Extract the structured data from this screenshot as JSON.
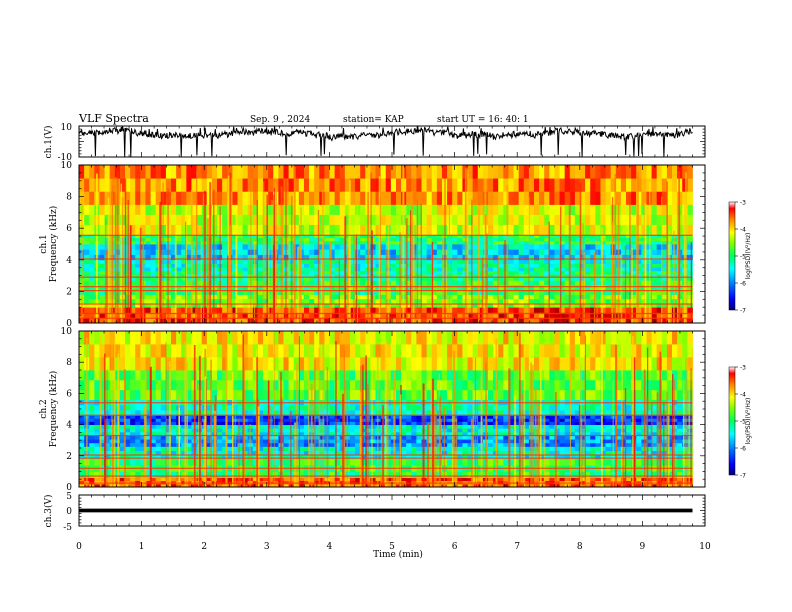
{
  "header": {
    "title": "VLF Spectra",
    "date": "Sep. 9 , 2024",
    "station": "station= KAP",
    "start": "start UT = 16: 40: 1"
  },
  "chart_data": [
    {
      "type": "line",
      "panel": "ch1",
      "ylabel": "ch.1(V)",
      "ylim": [
        -10,
        10
      ],
      "yticks": [
        "10",
        "-10"
      ],
      "xlim": [
        0,
        10
      ],
      "x_data_max": 9.8,
      "series": [
        {
          "level_approx": 5,
          "range": [
            -10,
            10
          ]
        }
      ]
    },
    {
      "type": "heatmap",
      "panel": "spec1",
      "ylabel": "ch.1",
      "ylabel2": "Frequency (kHz)",
      "ylim": [
        0,
        10
      ],
      "yticks": [
        "0",
        "2",
        "4",
        "6",
        "8",
        "10"
      ],
      "xlim": [
        0,
        10
      ],
      "x_data_max": 9.8,
      "colorbar": {
        "range": [
          -7,
          -3
        ],
        "ticks": [
          "-3",
          "-4",
          "-5",
          "-6",
          "-7"
        ],
        "label": "log(PSD)(V²/Hz)"
      },
      "bands": [
        {
          "f": [
            0,
            1.0
          ],
          "level": -3.4
        },
        {
          "f": [
            1.0,
            1.8
          ],
          "level": -4.6
        },
        {
          "f": [
            1.8,
            2.7
          ],
          "level": -4.9
        },
        {
          "f": [
            2.7,
            3.3
          ],
          "level": -5.1
        },
        {
          "f": [
            3.3,
            4.0
          ],
          "level": -5.3
        },
        {
          "f": [
            4.0,
            5.0
          ],
          "level": -5.6
        },
        {
          "f": [
            5.0,
            5.6
          ],
          "level": -4.9
        },
        {
          "f": [
            5.6,
            7.5
          ],
          "level": -4.3
        },
        {
          "f": [
            7.5,
            10.0
          ],
          "level": -3.7
        }
      ],
      "lines_khz": [
        0.3,
        0.6,
        1.2,
        2.05,
        2.3,
        2.9,
        4.05,
        5.55
      ]
    },
    {
      "type": "heatmap",
      "panel": "spec2",
      "ylabel": "ch.2",
      "ylabel2": "Frequency (kHz)",
      "ylim": [
        0,
        10
      ],
      "yticks": [
        "0",
        "2",
        "4",
        "6",
        "8",
        "10"
      ],
      "xlim": [
        0,
        10
      ],
      "x_data_max": 9.8,
      "colorbar": {
        "range": [
          -7,
          -3
        ],
        "ticks": [
          "-3",
          "-4",
          "-5",
          "-6",
          "-7"
        ],
        "label": "log(PSD)(V²/Hz)"
      },
      "bands": [
        {
          "f": [
            0,
            0.6
          ],
          "level": -3.5
        },
        {
          "f": [
            0.6,
            1.8
          ],
          "level": -4.9
        },
        {
          "f": [
            1.8,
            2.6
          ],
          "level": -5.4
        },
        {
          "f": [
            2.6,
            3.3
          ],
          "level": -5.9
        },
        {
          "f": [
            3.3,
            4.0
          ],
          "level": -5.4
        },
        {
          "f": [
            4.0,
            4.6
          ],
          "level": -6.3
        },
        {
          "f": [
            4.6,
            5.6
          ],
          "level": -5.3
        },
        {
          "f": [
            5.6,
            7.5
          ],
          "level": -4.7
        },
        {
          "f": [
            7.5,
            10.0
          ],
          "level": -4.1
        }
      ],
      "lines_khz": [
        0.25,
        0.7,
        1.2,
        1.85,
        2.05,
        3.3,
        4.6,
        5.4
      ]
    },
    {
      "type": "line",
      "panel": "ch3",
      "ylabel": "ch.3(V)",
      "ylim": [
        -5,
        5
      ],
      "yticks": [
        "5",
        "0",
        "-5"
      ],
      "xlim": [
        0,
        10
      ],
      "x_data_max": 9.8,
      "series": [
        {
          "level_approx": 0,
          "range": [
            -0.6,
            0.6
          ]
        }
      ]
    }
  ],
  "xaxis": {
    "label": "Time (min)",
    "ticks": [
      "0",
      "1",
      "2",
      "3",
      "4",
      "5",
      "6",
      "7",
      "8",
      "9",
      "10"
    ]
  },
  "colors": {
    "colormap": [
      "#00007a",
      "#0000ff",
      "#0080ff",
      "#00ffff",
      "#00ff80",
      "#00ff00",
      "#80ff00",
      "#ffff00",
      "#ff8000",
      "#ff0000",
      "#a00000"
    ]
  }
}
